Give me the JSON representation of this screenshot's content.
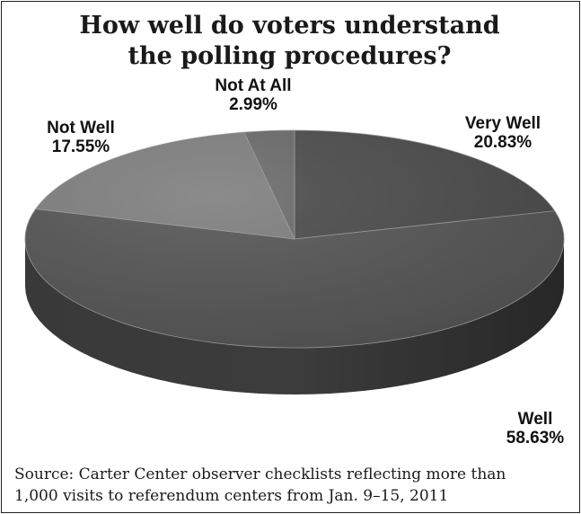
{
  "chart_data": {
    "type": "pie",
    "title_lines": [
      "How well do voters understand",
      "the polling procedures?"
    ],
    "slices": [
      {
        "label": "Very Well",
        "value": 20.83,
        "value_text": "20.83%",
        "color": "#4b4b4b",
        "side_color": "#3a3a3a"
      },
      {
        "label": "Well",
        "value": 58.63,
        "value_text": "58.63%",
        "color": "#555555",
        "side_color": "#3c3c3c"
      },
      {
        "label": "Not Well",
        "value": 17.55,
        "value_text": "17.55%",
        "color": "#7e7e7e",
        "side_color": "#6a6a6a"
      },
      {
        "label": "Not At All",
        "value": 2.99,
        "value_text": "2.99%",
        "color": "#6a6a6a",
        "side_color": "#5a5a5a"
      }
    ],
    "source_lines": [
      "Source: Carter Center observer checklists reflecting more than",
      "1,000 visits to referendum centers from Jan. 9–15, 2011"
    ]
  }
}
